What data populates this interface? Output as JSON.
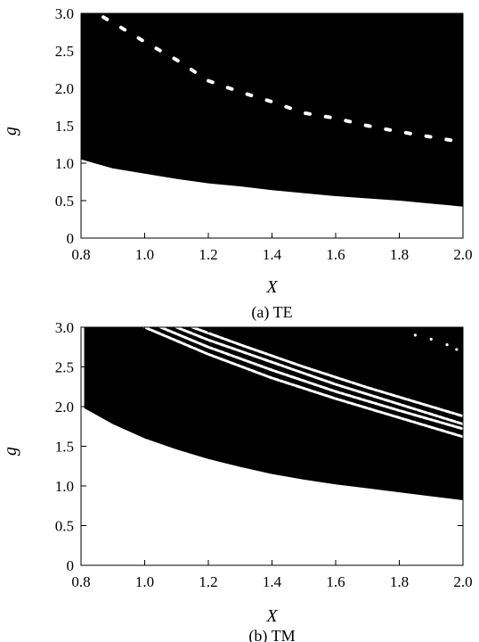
{
  "chart_data": [
    {
      "type": "area",
      "caption": "(a) TE",
      "xlabel": "X",
      "ylabel": "g",
      "xlim": [
        0.8,
        2.0
      ],
      "ylim": [
        0,
        3.0
      ],
      "xticks": [
        "0.8",
        "1.0",
        "1.2",
        "1.4",
        "1.6",
        "1.8",
        "2.0"
      ],
      "yticks": [
        "0",
        "0.5",
        "1.0",
        "1.5",
        "2.0",
        "2.5",
        "3.0"
      ],
      "region_fill_color": "#000000",
      "background_color": "#ffffff",
      "lower_boundary": {
        "x": [
          0.8,
          0.9,
          1.0,
          1.1,
          1.2,
          1.3,
          1.4,
          1.5,
          1.6,
          1.7,
          1.8,
          1.9,
          2.0
        ],
        "g": [
          1.05,
          0.93,
          0.86,
          0.79,
          0.73,
          0.69,
          0.64,
          0.6,
          0.56,
          0.53,
          0.5,
          0.46,
          0.42
        ]
      },
      "upper_boundary": {
        "x": [
          0.8,
          2.0
        ],
        "g": [
          3.0,
          3.0
        ]
      },
      "white_band": {
        "x": [
          0.87,
          0.93,
          1.0,
          1.05,
          1.1,
          1.2,
          1.3,
          1.4,
          1.5,
          1.6,
          1.7,
          1.8,
          1.9,
          2.0
        ],
        "g": [
          2.95,
          2.8,
          2.62,
          2.5,
          2.38,
          2.1,
          1.95,
          1.82,
          1.67,
          1.6,
          1.5,
          1.42,
          1.35,
          1.28
        ]
      }
    },
    {
      "type": "area",
      "caption": "(b) TM",
      "xlabel": "X",
      "ylabel": "g",
      "xlim": [
        0.8,
        2.0
      ],
      "ylim": [
        0,
        3.0
      ],
      "xticks": [
        "0.8",
        "1.0",
        "1.2",
        "1.4",
        "1.6",
        "1.8",
        "2.0"
      ],
      "yticks": [
        "0",
        "0.5",
        "1.0",
        "1.5",
        "2.0",
        "2.5",
        "3.0"
      ],
      "region_fill_color": "#000000",
      "background_color": "#ffffff",
      "lower_boundary": {
        "x": [
          0.81,
          0.9,
          1.0,
          1.1,
          1.2,
          1.3,
          1.4,
          1.5,
          1.6,
          1.7,
          1.8,
          1.9,
          2.0
        ],
        "g": [
          1.98,
          1.78,
          1.6,
          1.46,
          1.34,
          1.24,
          1.15,
          1.08,
          1.02,
          0.97,
          0.92,
          0.87,
          0.82
        ]
      },
      "upper_boundary": {
        "x": [
          0.81,
          2.0
        ],
        "g": [
          3.0,
          3.0
        ]
      },
      "white_bands": [
        {
          "x": [
            1.0,
            1.2,
            1.4,
            1.6,
            1.8,
            2.0
          ],
          "g": [
            3.0,
            2.66,
            2.36,
            2.1,
            1.86,
            1.62
          ]
        },
        {
          "x": [
            1.05,
            1.2,
            1.4,
            1.6,
            1.8,
            2.0
          ],
          "g": [
            3.0,
            2.75,
            2.46,
            2.19,
            1.95,
            1.72
          ]
        },
        {
          "x": [
            1.1,
            1.2,
            1.4,
            1.6,
            1.8,
            2.0
          ],
          "g": [
            3.0,
            2.84,
            2.56,
            2.28,
            2.03,
            1.78
          ]
        },
        {
          "x": [
            1.15,
            1.3,
            1.5,
            1.7,
            1.9,
            2.0
          ],
          "g": [
            3.0,
            2.78,
            2.5,
            2.24,
            2.0,
            1.88
          ]
        }
      ],
      "speckles": {
        "x": [
          1.85,
          1.9,
          1.95,
          1.98
        ],
        "g": [
          2.9,
          2.85,
          2.78,
          2.72
        ]
      }
    }
  ]
}
